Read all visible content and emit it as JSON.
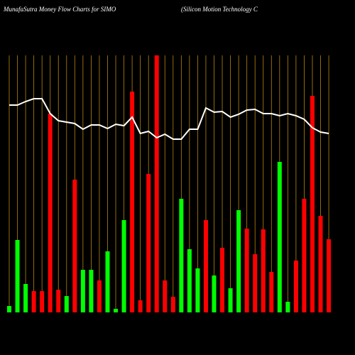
{
  "chart_data": {
    "type": "bar-line",
    "title": "MunafaSutra  Money Flow  Charts for SIMO",
    "subtitle": "(Silicon  Motion  Technology C",
    "categories": [
      null,
      null,
      null,
      null,
      null,
      null,
      null,
      null,
      null,
      null,
      null,
      null,
      null,
      null,
      null,
      null,
      null,
      null,
      null,
      null,
      null,
      null,
      null,
      null,
      null,
      null,
      null,
      null,
      null,
      null,
      null,
      null,
      null,
      null,
      null,
      null,
      null,
      null,
      null,
      null
    ],
    "ylim": [
      0,
      362
    ],
    "grid": true,
    "grid_color": "#b8860b",
    "background": "#000000",
    "series": [
      {
        "type": "bar",
        "values": [
          9,
          102,
          40,
          30,
          30,
          280,
          32,
          23,
          187,
          60,
          60,
          45,
          86,
          5,
          130,
          311,
          17,
          195,
          362,
          45,
          22,
          160,
          89,
          62,
          130,
          52,
          91,
          34,
          144,
          118,
          82,
          117,
          57,
          212,
          15,
          73,
          160,
          305,
          136,
          103
        ],
        "colors": [
          "#00ff00",
          "#00ff00",
          "#00ff00",
          "#ff0000",
          "#ff0000",
          "#ff0000",
          "#ff0000",
          "#00ff00",
          "#ff0000",
          "#00ff00",
          "#00ff00",
          "#ff0000",
          "#00ff00",
          "#00ff00",
          "#00ff00",
          "#ff0000",
          "#ff0000",
          "#ff0000",
          "#ff0000",
          "#ff0000",
          "#ff0000",
          "#00ff00",
          "#00ff00",
          "#00ff00",
          "#ff0000",
          "#00ff00",
          "#ff0000",
          "#00ff00",
          "#00ff00",
          "#ff0000",
          "#ff0000",
          "#ff0000",
          "#ff0000",
          "#00ff00",
          "#00ff00",
          "#ff0000",
          "#ff0000",
          "#ff0000",
          "#ff0000",
          "#ff0000"
        ]
      },
      {
        "type": "line",
        "color": "#ffffff",
        "values": [
          292,
          292,
          297,
          301,
          301,
          280,
          270,
          268,
          266,
          258,
          264,
          264,
          259,
          265,
          263,
          275,
          252,
          255,
          246,
          251,
          244,
          244,
          258,
          258,
          288,
          282,
          283,
          275,
          279,
          285,
          286,
          280,
          280,
          277,
          280,
          277,
          272,
          260,
          254,
          252
        ]
      }
    ]
  }
}
